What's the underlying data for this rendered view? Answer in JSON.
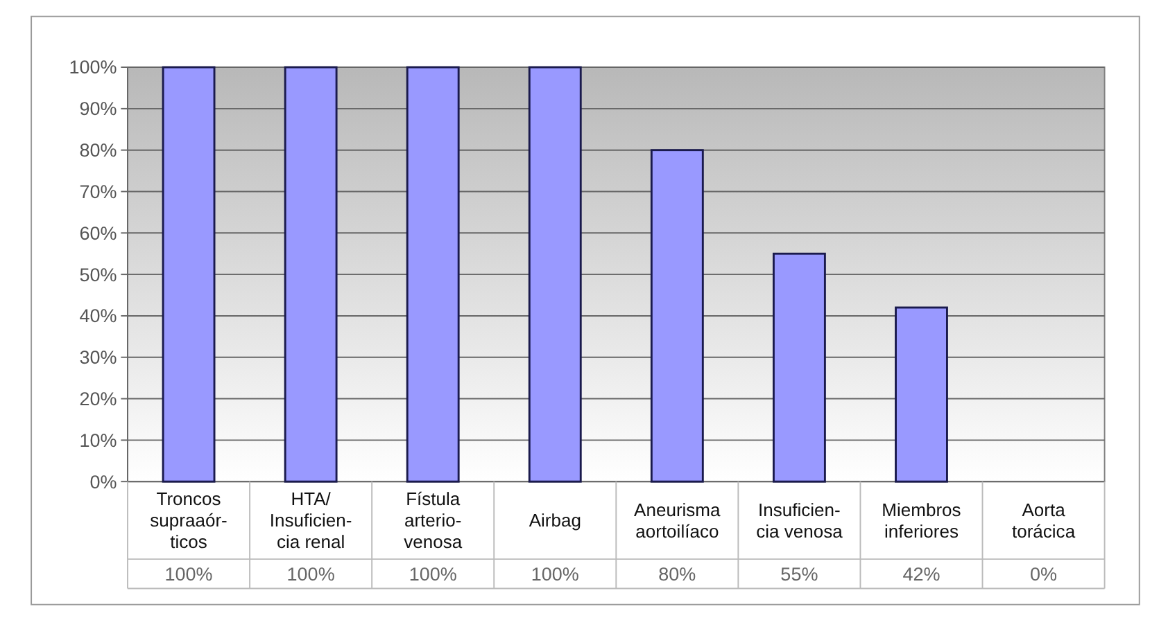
{
  "chart_data": {
    "type": "bar",
    "categories": [
      "Troncos\nsupraaór-\nticos",
      "HTA/\nInsuficien-\ncia renal",
      "Fístula\narterio-\nvenosa",
      "Airbag",
      "Aneurisma\naortoilíaco",
      "Insuficien-\ncia venosa",
      "Miembros\ninferiores",
      "Aorta\ntorácica"
    ],
    "values": [
      100,
      100,
      100,
      100,
      80,
      55,
      42,
      0
    ],
    "value_labels": [
      "100%",
      "100%",
      "100%",
      "100%",
      "80%",
      "55%",
      "42%",
      "0%"
    ],
    "color": "#9999ff",
    "ylim": [
      0,
      100
    ],
    "yticks": [
      {
        "value": 0,
        "label": "0%"
      },
      {
        "value": 10,
        "label": "10%"
      },
      {
        "value": 20,
        "label": "20%"
      },
      {
        "value": 30,
        "label": "30%"
      },
      {
        "value": 40,
        "label": "40%"
      },
      {
        "value": 50,
        "label": "50%"
      },
      {
        "value": 60,
        "label": "60%"
      },
      {
        "value": 70,
        "label": "70%"
      },
      {
        "value": 80,
        "label": "80%"
      },
      {
        "value": 90,
        "label": "90%"
      },
      {
        "value": 100,
        "label": "100%"
      }
    ],
    "grid": "y"
  }
}
